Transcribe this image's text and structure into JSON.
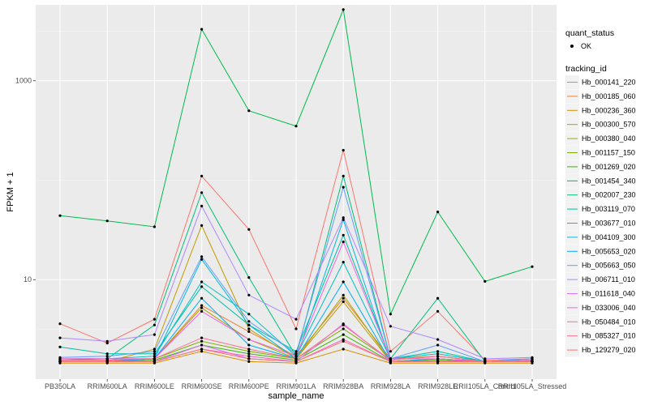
{
  "chart_data": {
    "type": "line",
    "xlabel": "sample_name",
    "ylabel": "FPKM + 1",
    "y_scale": "log10",
    "ylim": [
      1.0,
      5800
    ],
    "y_ticks": [
      {
        "value": 10,
        "label": "10"
      },
      {
        "value": 1000,
        "label": "1000"
      }
    ],
    "grid": true,
    "legend_position": "right",
    "categories": [
      "PB350LA",
      "RRIM600LA",
      "RRIM600LE",
      "RRIM600SE",
      "RRIM600PE",
      "RRIM901LA",
      "RRIM928BA",
      "RRIM928LA",
      "RRIM928LE",
      "RRII105LA_Control",
      "RRII105LA_Stressed"
    ],
    "tick_labels": [
      "PB350LA",
      "RRIM600LA",
      "RRIM600LE",
      "RRIM600SE",
      "RRIM600PE",
      "RRIM901LA",
      "RRIM928BA",
      "RRIM928LA",
      "RRIM928LE",
      "RRII105LA_Control",
      "RRII105LA_Stressed"
    ],
    "shape_legend": {
      "title": "quant_status",
      "items": [
        {
          "label": "OK"
        }
      ]
    },
    "color_legend_title": "tracking_id",
    "series": [
      {
        "name": "Hb_000141_220",
        "color": "#F8766D",
        "values": [
          3.6,
          2.3,
          4.0,
          110,
          32,
          3.2,
          200,
          1.9,
          4.8,
          1.55,
          1.6
        ]
      },
      {
        "name": "Hb_000185_060",
        "color": "#EA8331",
        "values": [
          1.6,
          1.6,
          1.6,
          5.5,
          3.0,
          1.7,
          6.5,
          1.6,
          1.7,
          1.5,
          1.55
        ]
      },
      {
        "name": "Hb_000236_360",
        "color": "#D89000",
        "values": [
          1.45,
          1.45,
          1.45,
          1.9,
          1.5,
          1.45,
          2.0,
          1.45,
          1.45,
          1.45,
          1.45
        ]
      },
      {
        "name": "Hb_000300_570",
        "color": "#C09B00",
        "values": [
          1.5,
          1.5,
          2.0,
          35,
          3.2,
          1.6,
          6.0,
          1.5,
          1.6,
          1.5,
          1.5
        ]
      },
      {
        "name": "Hb_000380_040",
        "color": "#A3A500",
        "values": [
          1.5,
          1.5,
          1.6,
          5.2,
          2.5,
          1.6,
          7.0,
          1.5,
          1.6,
          1.5,
          1.5
        ]
      },
      {
        "name": "Hb_001157_150",
        "color": "#7CAE00",
        "values": [
          1.55,
          1.55,
          1.6,
          2.4,
          1.9,
          1.6,
          3.2,
          1.55,
          1.7,
          1.5,
          1.5
        ]
      },
      {
        "name": "Hb_001269_020",
        "color": "#39B600",
        "values": [
          1.5,
          1.5,
          1.55,
          2.2,
          1.8,
          1.55,
          2.8,
          1.5,
          1.55,
          1.5,
          1.5
        ]
      },
      {
        "name": "Hb_001454_340",
        "color": "#00BB4E",
        "values": [
          44,
          39,
          34,
          3300,
          500,
          350,
          5200,
          4.5,
          48,
          9.6,
          13.5
        ]
      },
      {
        "name": "Hb_002007_230",
        "color": "#00BF7D",
        "values": [
          1.55,
          1.6,
          3.5,
          75,
          10.5,
          1.7,
          110,
          1.6,
          6.5,
          1.5,
          1.55
        ]
      },
      {
        "name": "Hb_003119_070",
        "color": "#00C1A3",
        "values": [
          2.1,
          1.8,
          1.8,
          8.5,
          3.5,
          1.9,
          28,
          1.6,
          1.9,
          1.5,
          1.6
        ]
      },
      {
        "name": "Hb_003677_010",
        "color": "#00BFC4",
        "values": [
          1.6,
          1.6,
          1.7,
          9.5,
          4.5,
          1.7,
          15,
          1.6,
          1.8,
          1.5,
          1.5
        ]
      },
      {
        "name": "Hb_004109_300",
        "color": "#00B9E3",
        "values": [
          1.5,
          1.5,
          1.6,
          16,
          3.5,
          1.6,
          40,
          1.5,
          1.6,
          1.5,
          1.5
        ]
      },
      {
        "name": "Hb_005653_020",
        "color": "#00ADFA",
        "values": [
          1.5,
          1.5,
          1.6,
          6.5,
          2.2,
          1.6,
          9.5,
          1.5,
          1.5,
          1.5,
          1.5
        ]
      },
      {
        "name": "Hb_005663_050",
        "color": "#619CFF",
        "values": [
          1.65,
          1.7,
          1.9,
          17,
          3.8,
          1.8,
          85,
          1.6,
          2.2,
          1.5,
          1.6
        ]
      },
      {
        "name": "Hb_006711_010",
        "color": "#AE87FF",
        "values": [
          2.6,
          2.4,
          2.8,
          55,
          7.0,
          4.0,
          42,
          3.4,
          2.5,
          1.6,
          1.65
        ]
      },
      {
        "name": "Hb_011618_040",
        "color": "#DB72FB",
        "values": [
          1.5,
          1.5,
          1.5,
          2.2,
          1.6,
          1.5,
          3.6,
          1.5,
          1.5,
          1.5,
          1.5
        ]
      },
      {
        "name": "Hb_033006_040",
        "color": "#F564E3",
        "values": [
          1.6,
          1.6,
          1.6,
          4.8,
          2.5,
          1.7,
          24,
          1.6,
          1.6,
          1.5,
          1.55
        ]
      },
      {
        "name": "Hb_050484_010",
        "color": "#FF61C3",
        "values": [
          1.5,
          1.5,
          1.5,
          2.0,
          1.7,
          1.5,
          2.5,
          1.5,
          1.5,
          1.5,
          1.5
        ]
      },
      {
        "name": "Hb_085327_010",
        "color": "#FF6C91",
        "values": [
          1.55,
          1.55,
          1.6,
          2.6,
          2.0,
          1.6,
          3.5,
          1.55,
          1.7,
          1.5,
          1.5
        ]
      },
      {
        "name": "Hb_129279_020",
        "color": "#F8766D",
        "values": [
          1.5,
          1.5,
          1.5,
          2.0,
          1.6,
          1.5,
          2.4,
          1.5,
          1.5,
          1.5,
          1.5
        ]
      }
    ]
  }
}
